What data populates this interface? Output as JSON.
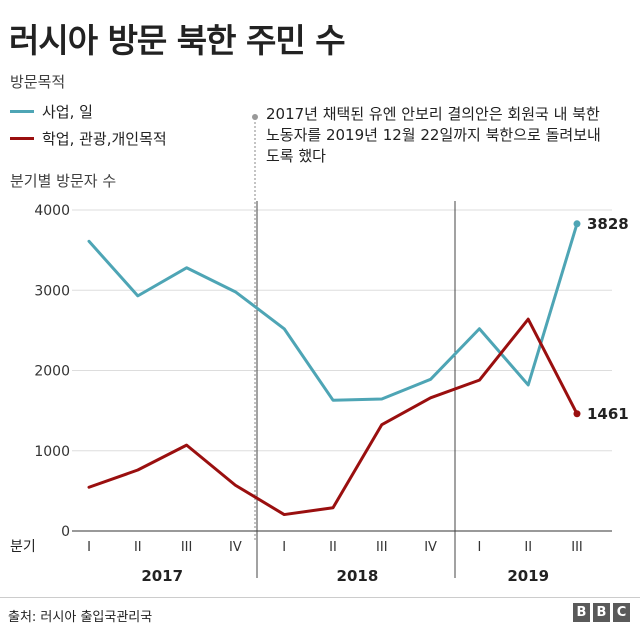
{
  "title": "러시아 방문 북한 주민 수",
  "legend": {
    "title": "방문목적",
    "items": [
      {
        "label": "사업, 일",
        "color": "#4ea5b5"
      },
      {
        "label": "학업, 관광,개인목적",
        "color": "#9a0f0f"
      }
    ]
  },
  "annotation": "2017년 채택된 유엔 안보리 결의안은 회원국 내 북한 노동자를 2019년 12월 22일까지 북한으로 돌려보내도록 했다",
  "y_axis_label": "분기별 방문자 수",
  "x_axis_prefix": "분기",
  "source": "출처: 러시아 출입국관리국",
  "logo": "BBC",
  "chart_data": {
    "type": "line",
    "ylim": [
      0,
      4000
    ],
    "yticks": [
      0,
      1000,
      2000,
      3000,
      4000
    ],
    "years": [
      "2017",
      "2018",
      "2019"
    ],
    "categories": [
      "I",
      "II",
      "III",
      "IV",
      "I",
      "II",
      "III",
      "IV",
      "I",
      "II",
      "III"
    ],
    "grid": true,
    "series": [
      {
        "name": "사업, 일",
        "color": "#4ea5b5",
        "values": [
          3610,
          2930,
          3280,
          2980,
          2520,
          1630,
          1645,
          1890,
          2520,
          1820,
          3828
        ]
      },
      {
        "name": "학업, 관광,개인목적",
        "color": "#9a0f0f",
        "values": [
          545,
          760,
          1070,
          570,
          205,
          290,
          1325,
          1660,
          1880,
          2640,
          1461
        ]
      }
    ],
    "end_labels": [
      "3828",
      "1461"
    ]
  }
}
